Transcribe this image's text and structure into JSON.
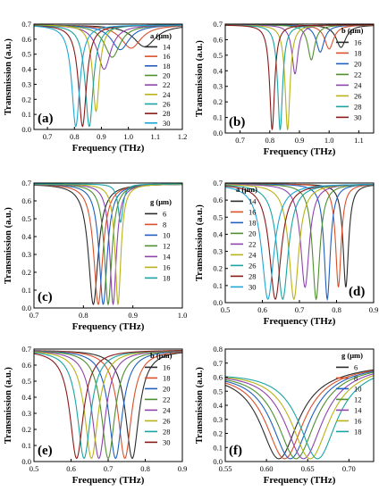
{
  "colors": [
    "#2b2b2b",
    "#d9502a",
    "#1f5fbf",
    "#4f8f2f",
    "#8e44ad",
    "#b9b218",
    "#1aa3a3",
    "#8a1a1a",
    "#1fa6d6"
  ],
  "chart_data": [
    {
      "type": "line",
      "panel_label": "(a)",
      "xlabel": "Frequency (THz)",
      "ylabel": "Transmission (a.u.)",
      "xlim": [
        0.65,
        1.2
      ],
      "ylim": [
        0,
        0.7
      ],
      "xticks": [
        "0.7",
        "0.8",
        "0.9",
        "1.0",
        "1.1",
        "1.2"
      ],
      "yticks": [
        "0.0",
        "0.1",
        "0.2",
        "0.3",
        "0.4",
        "0.5",
        "0.6",
        "0.7"
      ],
      "legend_title": "a (μm)",
      "legend_placement": "right",
      "series": [
        {
          "name": "14",
          "center": 1.06,
          "min": 0.55,
          "width": 0.05
        },
        {
          "name": "16",
          "center": 1.01,
          "min": 0.54,
          "width": 0.045
        },
        {
          "name": "18",
          "center": 0.97,
          "min": 0.53,
          "width": 0.04
        },
        {
          "name": "20",
          "center": 0.94,
          "min": 0.48,
          "width": 0.035
        },
        {
          "name": "22",
          "center": 0.91,
          "min": 0.4,
          "width": 0.03
        },
        {
          "name": "24",
          "center": 0.88,
          "min": 0.12,
          "width": 0.015
        },
        {
          "name": "26",
          "center": 0.855,
          "min": 0.02,
          "width": 0.018
        },
        {
          "name": "28",
          "center": 0.83,
          "min": 0.02,
          "width": 0.018
        },
        {
          "name": "30",
          "center": 0.805,
          "min": 0.02,
          "width": 0.018
        }
      ]
    },
    {
      "type": "line",
      "panel_label": "(b)",
      "xlabel": "Frequency (THz)",
      "ylabel": "Transmission (a.u.)",
      "xlim": [
        0.65,
        1.15
      ],
      "ylim": [
        0,
        0.7
      ],
      "xticks": [
        "0.7",
        "0.8",
        "0.9",
        "1.0",
        "1.1"
      ],
      "yticks": [
        "0.0",
        "0.1",
        "0.2",
        "0.3",
        "0.4",
        "0.5",
        "0.6",
        "0.7"
      ],
      "legend_title": "b (μm)",
      "legend_placement": "right",
      "series": [
        {
          "name": "16",
          "center": 1.04,
          "min": 0.55,
          "width": 0.02
        },
        {
          "name": "18",
          "center": 1.0,
          "min": 0.54,
          "width": 0.018
        },
        {
          "name": "20",
          "center": 0.97,
          "min": 0.52,
          "width": 0.016
        },
        {
          "name": "22",
          "center": 0.94,
          "min": 0.47,
          "width": 0.014
        },
        {
          "name": "24",
          "center": 0.885,
          "min": 0.38,
          "width": 0.012
        },
        {
          "name": "26",
          "center": 0.86,
          "min": 0.02,
          "width": 0.01
        },
        {
          "name": "28",
          "center": 0.835,
          "min": 0.02,
          "width": 0.01
        },
        {
          "name": "30",
          "center": 0.808,
          "min": 0.02,
          "width": 0.01
        }
      ]
    },
    {
      "type": "line",
      "panel_label": "(c)",
      "xlabel": "Frequency (THz)",
      "ylabel": "Transmission (a.u.)",
      "xlim": [
        0.7,
        1.0
      ],
      "ylim": [
        0,
        0.7
      ],
      "xticks": [
        "0.7",
        "0.8",
        "0.9",
        "1.0"
      ],
      "yticks": [
        "0.0",
        "0.1",
        "0.2",
        "0.3",
        "0.4",
        "0.5",
        "0.6",
        "0.7"
      ],
      "legend_title": "g (μm)",
      "legend_placement": "right",
      "series": [
        {
          "name": "6",
          "center": 0.82,
          "min": 0.02,
          "width": 0.012
        },
        {
          "name": "8",
          "center": 0.83,
          "min": 0.02,
          "width": 0.011
        },
        {
          "name": "10",
          "center": 0.84,
          "min": 0.02,
          "width": 0.01
        },
        {
          "name": "12",
          "center": 0.85,
          "min": 0.02,
          "width": 0.009
        },
        {
          "name": "14",
          "center": 0.86,
          "min": 0.02,
          "width": 0.008
        },
        {
          "name": "16",
          "center": 0.87,
          "min": 0.02,
          "width": 0.007
        },
        {
          "name": "18",
          "center": 0.875,
          "min": 0.48,
          "width": 0.006
        }
      ]
    },
    {
      "type": "line",
      "panel_label": "(d)",
      "xlabel": "Frequency (THz)",
      "ylabel": "Transmission (a.u.)",
      "xlim": [
        0.5,
        0.9
      ],
      "ylim": [
        0,
        0.7
      ],
      "xticks": [
        "0.5",
        "0.6",
        "0.7",
        "0.8",
        "0.9"
      ],
      "yticks": [
        "0.0",
        "0.1",
        "0.2",
        "0.3",
        "0.4",
        "0.5",
        "0.6",
        "0.7"
      ],
      "legend_title": "a (μm)",
      "legend_placement": "left",
      "series": [
        {
          "name": "14",
          "center": 0.825,
          "min": 0.09,
          "width": 0.009
        },
        {
          "name": "16",
          "center": 0.805,
          "min": 0.09,
          "width": 0.009
        },
        {
          "name": "18",
          "center": 0.775,
          "min": 0.02,
          "width": 0.01
        },
        {
          "name": "20",
          "center": 0.745,
          "min": 0.02,
          "width": 0.012
        },
        {
          "name": "22",
          "center": 0.715,
          "min": 0.09,
          "width": 0.014
        },
        {
          "name": "24",
          "center": 0.685,
          "min": 0.02,
          "width": 0.016
        },
        {
          "name": "26",
          "center": 0.655,
          "min": 0.02,
          "width": 0.018
        },
        {
          "name": "28",
          "center": 0.635,
          "min": 0.02,
          "width": 0.019
        },
        {
          "name": "30",
          "center": 0.615,
          "min": 0.02,
          "width": 0.02
        }
      ]
    },
    {
      "type": "line",
      "panel_label": "(e)",
      "xlabel": "Frequency (THz)",
      "ylabel": "Transmission (a.u.)",
      "xlim": [
        0.5,
        0.9
      ],
      "ylim": [
        0,
        0.7
      ],
      "xticks": [
        "0.5",
        "0.6",
        "0.7",
        "0.8",
        "0.9"
      ],
      "yticks": [
        "0.0",
        "0.1",
        "0.2",
        "0.3",
        "0.4",
        "0.5",
        "0.6",
        "0.7"
      ],
      "legend_title": "b (μm)",
      "legend_placement": "right",
      "series": [
        {
          "name": "16",
          "center": 0.765,
          "min": 0.02,
          "width": 0.022
        },
        {
          "name": "18",
          "center": 0.745,
          "min": 0.02,
          "width": 0.022
        },
        {
          "name": "20",
          "center": 0.72,
          "min": 0.02,
          "width": 0.022
        },
        {
          "name": "22",
          "center": 0.7,
          "min": 0.02,
          "width": 0.022
        },
        {
          "name": "24",
          "center": 0.675,
          "min": 0.02,
          "width": 0.022
        },
        {
          "name": "26",
          "center": 0.655,
          "min": 0.02,
          "width": 0.022
        },
        {
          "name": "28",
          "center": 0.635,
          "min": 0.02,
          "width": 0.022
        },
        {
          "name": "30",
          "center": 0.615,
          "min": 0.02,
          "width": 0.022
        }
      ]
    },
    {
      "type": "line",
      "panel_label": "(f)",
      "xlabel": "Frequency (THz)",
      "ylabel": "Transmission (a.u.)",
      "xlim": [
        0.55,
        0.73
      ],
      "ylim": [
        0,
        0.8
      ],
      "xticks": [
        "0.55",
        "0.60",
        "0.65",
        "0.70"
      ],
      "yticks": [
        "0.0",
        "0.1",
        "0.2",
        "0.3",
        "0.4",
        "0.5",
        "0.6",
        "0.7",
        "0.8"
      ],
      "legend_title": "g (μm)",
      "legend_placement": "right",
      "series": [
        {
          "name": "6",
          "center": 0.615,
          "min": 0.02,
          "width": 0.028
        },
        {
          "name": "8",
          "center": 0.622,
          "min": 0.02,
          "width": 0.028
        },
        {
          "name": "10",
          "center": 0.629,
          "min": 0.02,
          "width": 0.028
        },
        {
          "name": "12",
          "center": 0.636,
          "min": 0.02,
          "width": 0.028
        },
        {
          "name": "14",
          "center": 0.645,
          "min": 0.02,
          "width": 0.028
        },
        {
          "name": "16",
          "center": 0.653,
          "min": 0.02,
          "width": 0.028
        },
        {
          "name": "18",
          "center": 0.662,
          "min": 0.02,
          "width": 0.028
        }
      ]
    }
  ]
}
